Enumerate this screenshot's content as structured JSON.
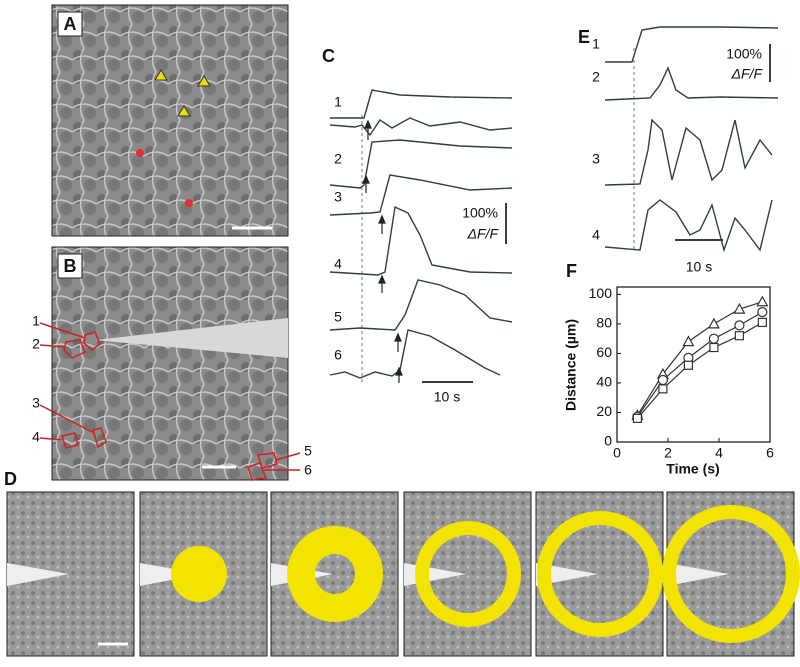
{
  "panels": {
    "A": {
      "label": "A"
    },
    "B": {
      "label": "B",
      "cells": [
        "1",
        "2",
        "3",
        "4",
        "5",
        "6"
      ]
    },
    "C": {
      "label": "C",
      "traces": [
        "1",
        "2",
        "3",
        "4",
        "5",
        "6"
      ],
      "scale_value": "100%",
      "scale_unit": "ΔF/F",
      "time_scale": "10 s"
    },
    "D": {
      "label": "D"
    },
    "E": {
      "label": "E",
      "traces": [
        "1",
        "2",
        "3",
        "4"
      ],
      "scale_value": "100%",
      "scale_unit": "ΔF/F",
      "time_scale": "10 s"
    },
    "F": {
      "label": "F"
    }
  },
  "chart_data": {
    "type": "line",
    "xlabel": "Time (s)",
    "ylabel": "Distance (µm)",
    "x": [
      0.8,
      1.8,
      2.8,
      3.8,
      4.8,
      5.7
    ],
    "xlim": [
      0,
      6
    ],
    "xticks": [
      0,
      2,
      4,
      6
    ],
    "ylim": [
      0,
      105
    ],
    "yticks": [
      0,
      20,
      40,
      60,
      80,
      100
    ],
    "series": [
      {
        "marker": "triangle",
        "color": "#333333",
        "values": [
          18,
          46,
          68,
          80,
          90,
          95
        ]
      },
      {
        "marker": "circle",
        "color": "#333333",
        "values": [
          17,
          42,
          57,
          70,
          79,
          88
        ]
      },
      {
        "marker": "square",
        "color": "#333333",
        "values": [
          16,
          36,
          52,
          64,
          72,
          81
        ]
      }
    ]
  }
}
